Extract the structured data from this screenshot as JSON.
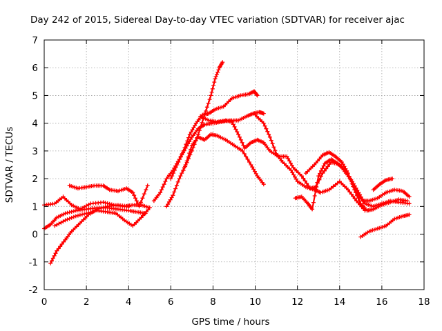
{
  "chart_data": {
    "type": "scatter",
    "title": "Day 242 of 2015, Sidereal Day-to-day VTEC variation (SDTVAR) for receiver ajac",
    "xlabel": "GPS time / hours",
    "ylabel": "SDTVAR / TECUs",
    "xlim": [
      0,
      18
    ],
    "ylim": [
      -2,
      7
    ],
    "xticks": [
      "0",
      "2",
      "4",
      "6",
      "8",
      "10",
      "12",
      "14",
      "16",
      "18"
    ],
    "yticks": [
      "-2",
      "-1",
      "0",
      "1",
      "2",
      "3",
      "4",
      "5",
      "6",
      "7"
    ],
    "grid": true,
    "marker": "+",
    "color": "#ff0000",
    "series": [
      {
        "name": "track-1",
        "points": [
          [
            0.0,
            0.2
          ],
          [
            0.3,
            0.35
          ],
          [
            0.6,
            0.6
          ],
          [
            1.0,
            0.75
          ],
          [
            1.5,
            0.85
          ],
          [
            2.0,
            0.9
          ],
          [
            2.5,
            0.95
          ],
          [
            3.0,
            0.95
          ],
          [
            3.5,
            0.9
          ],
          [
            4.0,
            0.85
          ],
          [
            4.4,
            0.8
          ],
          [
            4.8,
            0.75
          ]
        ]
      },
      {
        "name": "track-2",
        "points": [
          [
            0.3,
            -1.05
          ],
          [
            0.6,
            -0.6
          ],
          [
            1.0,
            -0.2
          ],
          [
            1.3,
            0.1
          ],
          [
            1.7,
            0.4
          ],
          [
            2.1,
            0.7
          ],
          [
            2.5,
            0.9
          ],
          [
            3.0,
            1.0
          ],
          [
            3.5,
            1.05
          ],
          [
            4.0,
            1.0
          ]
        ]
      },
      {
        "name": "track-3",
        "points": [
          [
            0.0,
            1.05
          ],
          [
            0.5,
            1.1
          ],
          [
            0.9,
            1.35
          ],
          [
            1.3,
            1.05
          ],
          [
            1.7,
            0.9
          ],
          [
            2.2,
            1.1
          ],
          [
            2.8,
            1.15
          ],
          [
            3.3,
            1.05
          ],
          [
            3.8,
            1.0
          ],
          [
            4.2,
            1.05
          ],
          [
            4.6,
            1.05
          ],
          [
            5.0,
            0.95
          ]
        ]
      },
      {
        "name": "track-4",
        "points": [
          [
            1.2,
            1.75
          ],
          [
            1.6,
            1.65
          ],
          [
            2.0,
            1.7
          ],
          [
            2.4,
            1.75
          ],
          [
            2.8,
            1.75
          ],
          [
            3.1,
            1.6
          ],
          [
            3.5,
            1.55
          ],
          [
            3.9,
            1.65
          ],
          [
            4.2,
            1.5
          ],
          [
            4.5,
            1.0
          ],
          [
            4.9,
            1.75
          ]
        ]
      },
      {
        "name": "track-5",
        "points": [
          [
            0.5,
            0.3
          ],
          [
            1.0,
            0.5
          ],
          [
            1.5,
            0.65
          ],
          [
            2.0,
            0.75
          ],
          [
            2.5,
            0.85
          ],
          [
            3.0,
            0.8
          ],
          [
            3.4,
            0.75
          ],
          [
            3.8,
            0.5
          ],
          [
            4.2,
            0.3
          ],
          [
            4.6,
            0.6
          ],
          [
            5.0,
            0.95
          ]
        ]
      },
      {
        "name": "track-6",
        "points": [
          [
            5.8,
            1.0
          ],
          [
            6.1,
            1.4
          ],
          [
            6.4,
            2.0
          ],
          [
            6.7,
            2.5
          ],
          [
            7.0,
            3.2
          ],
          [
            7.3,
            3.5
          ],
          [
            7.6,
            3.4
          ],
          [
            7.9,
            3.6
          ],
          [
            8.2,
            3.55
          ],
          [
            8.6,
            3.4
          ],
          [
            9.0,
            3.2
          ],
          [
            9.4,
            3.0
          ],
          [
            9.8,
            2.5
          ],
          [
            10.1,
            2.1
          ],
          [
            10.4,
            1.8
          ]
        ]
      },
      {
        "name": "track-7",
        "points": [
          [
            5.2,
            1.2
          ],
          [
            5.5,
            1.5
          ],
          [
            5.8,
            2.0
          ],
          [
            6.1,
            2.3
          ],
          [
            6.4,
            2.7
          ],
          [
            6.7,
            3.1
          ],
          [
            7.0,
            3.5
          ],
          [
            7.3,
            3.8
          ],
          [
            7.6,
            3.95
          ],
          [
            8.0,
            4.0
          ],
          [
            8.4,
            4.05
          ],
          [
            8.8,
            4.1
          ],
          [
            9.2,
            4.1
          ],
          [
            9.6,
            4.25
          ],
          [
            9.9,
            4.35
          ],
          [
            10.2,
            4.4
          ],
          [
            10.4,
            4.35
          ]
        ]
      },
      {
        "name": "track-8",
        "points": [
          [
            6.0,
            2.0
          ],
          [
            6.3,
            2.5
          ],
          [
            6.6,
            3.0
          ],
          [
            6.9,
            3.6
          ],
          [
            7.2,
            4.0
          ],
          [
            7.5,
            4.3
          ],
          [
            7.8,
            4.35
          ],
          [
            8.1,
            4.5
          ],
          [
            8.5,
            4.6
          ],
          [
            8.9,
            4.9
          ],
          [
            9.3,
            5.0
          ],
          [
            9.7,
            5.05
          ],
          [
            9.95,
            5.15
          ],
          [
            10.1,
            5.0
          ]
        ]
      },
      {
        "name": "track-9",
        "points": [
          [
            6.6,
            2.3
          ],
          [
            7.0,
            3.0
          ],
          [
            7.3,
            3.6
          ],
          [
            7.6,
            4.3
          ],
          [
            7.9,
            5.0
          ],
          [
            8.1,
            5.6
          ],
          [
            8.3,
            6.0
          ],
          [
            8.45,
            6.2
          ]
        ]
      },
      {
        "name": "track-10",
        "points": [
          [
            7.4,
            4.25
          ],
          [
            7.8,
            4.1
          ],
          [
            8.2,
            4.05
          ],
          [
            8.6,
            4.1
          ],
          [
            8.9,
            4.05
          ],
          [
            9.2,
            3.6
          ],
          [
            9.5,
            3.1
          ],
          [
            9.8,
            3.3
          ],
          [
            10.1,
            3.4
          ],
          [
            10.4,
            3.3
          ],
          [
            10.7,
            3.0
          ],
          [
            11.1,
            2.8
          ],
          [
            11.5,
            2.8
          ],
          [
            11.8,
            2.4
          ],
          [
            12.2,
            2.1
          ],
          [
            12.6,
            1.65
          ],
          [
            12.9,
            1.7
          ]
        ]
      },
      {
        "name": "track-11",
        "points": [
          [
            10.0,
            4.3
          ],
          [
            10.4,
            4.0
          ],
          [
            10.7,
            3.5
          ],
          [
            11.0,
            2.9
          ],
          [
            11.3,
            2.6
          ],
          [
            11.7,
            2.3
          ],
          [
            12.0,
            1.9
          ],
          [
            12.4,
            1.7
          ],
          [
            12.8,
            1.6
          ],
          [
            13.1,
            1.5
          ],
          [
            13.5,
            1.6
          ],
          [
            14.0,
            1.9
          ],
          [
            14.4,
            1.6
          ],
          [
            14.8,
            1.2
          ],
          [
            15.2,
            0.85
          ]
        ]
      },
      {
        "name": "track-12",
        "points": [
          [
            11.9,
            1.3
          ],
          [
            12.2,
            1.35
          ],
          [
            12.5,
            1.1
          ],
          [
            12.7,
            0.9
          ],
          [
            13.0,
            2.1
          ],
          [
            13.3,
            2.55
          ],
          [
            13.6,
            2.7
          ],
          [
            13.9,
            2.55
          ],
          [
            14.2,
            2.35
          ],
          [
            14.5,
            2.0
          ],
          [
            14.8,
            1.5
          ],
          [
            15.1,
            1.2
          ],
          [
            15.4,
            1.2
          ],
          [
            15.8,
            1.3
          ],
          [
            16.2,
            1.5
          ],
          [
            16.6,
            1.6
          ],
          [
            17.0,
            1.55
          ],
          [
            17.3,
            1.35
          ]
        ]
      },
      {
        "name": "track-13",
        "points": [
          [
            12.4,
            2.2
          ],
          [
            12.8,
            2.5
          ],
          [
            13.2,
            2.85
          ],
          [
            13.5,
            2.95
          ],
          [
            13.8,
            2.8
          ],
          [
            14.1,
            2.6
          ],
          [
            14.4,
            2.2
          ],
          [
            14.7,
            1.6
          ],
          [
            15.0,
            1.1
          ],
          [
            15.3,
            0.85
          ],
          [
            15.6,
            0.9
          ],
          [
            16.0,
            1.05
          ],
          [
            16.4,
            1.15
          ],
          [
            16.8,
            1.25
          ],
          [
            17.2,
            1.2
          ]
        ]
      },
      {
        "name": "track-14",
        "points": [
          [
            12.8,
            1.6
          ],
          [
            13.2,
            2.2
          ],
          [
            13.6,
            2.6
          ],
          [
            14.0,
            2.5
          ],
          [
            14.3,
            2.2
          ],
          [
            14.6,
            1.9
          ],
          [
            14.9,
            1.5
          ],
          [
            15.2,
            1.1
          ],
          [
            15.6,
            1.0
          ],
          [
            16.0,
            1.1
          ],
          [
            16.4,
            1.2
          ],
          [
            16.8,
            1.15
          ],
          [
            17.3,
            1.1
          ]
        ]
      },
      {
        "name": "track-15",
        "points": [
          [
            15.0,
            -0.1
          ],
          [
            15.4,
            0.1
          ],
          [
            15.8,
            0.2
          ],
          [
            16.2,
            0.3
          ],
          [
            16.6,
            0.55
          ],
          [
            17.0,
            0.65
          ],
          [
            17.3,
            0.7
          ]
        ]
      },
      {
        "name": "track-16",
        "points": [
          [
            15.6,
            1.6
          ],
          [
            15.9,
            1.8
          ],
          [
            16.2,
            1.95
          ],
          [
            16.5,
            2.0
          ]
        ]
      }
    ]
  }
}
